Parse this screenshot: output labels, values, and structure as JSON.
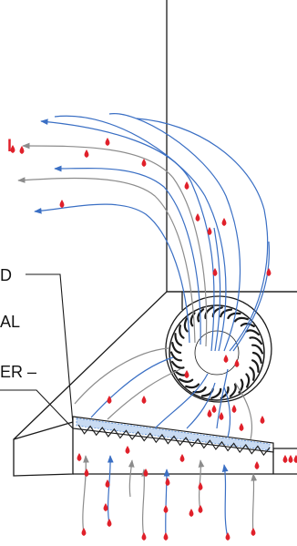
{
  "labels": {
    "fragment_1": "D",
    "fragment_2": "AL",
    "fragment_3": "ER –",
    "fragment_4": "l"
  },
  "colors": {
    "line": "#1a1a1a",
    "stream_blue": "#3a6fc4",
    "stream_gray": "#8c8c8c",
    "marker_red": "#e0202a",
    "filter_blue": "#5b8fd6"
  }
}
